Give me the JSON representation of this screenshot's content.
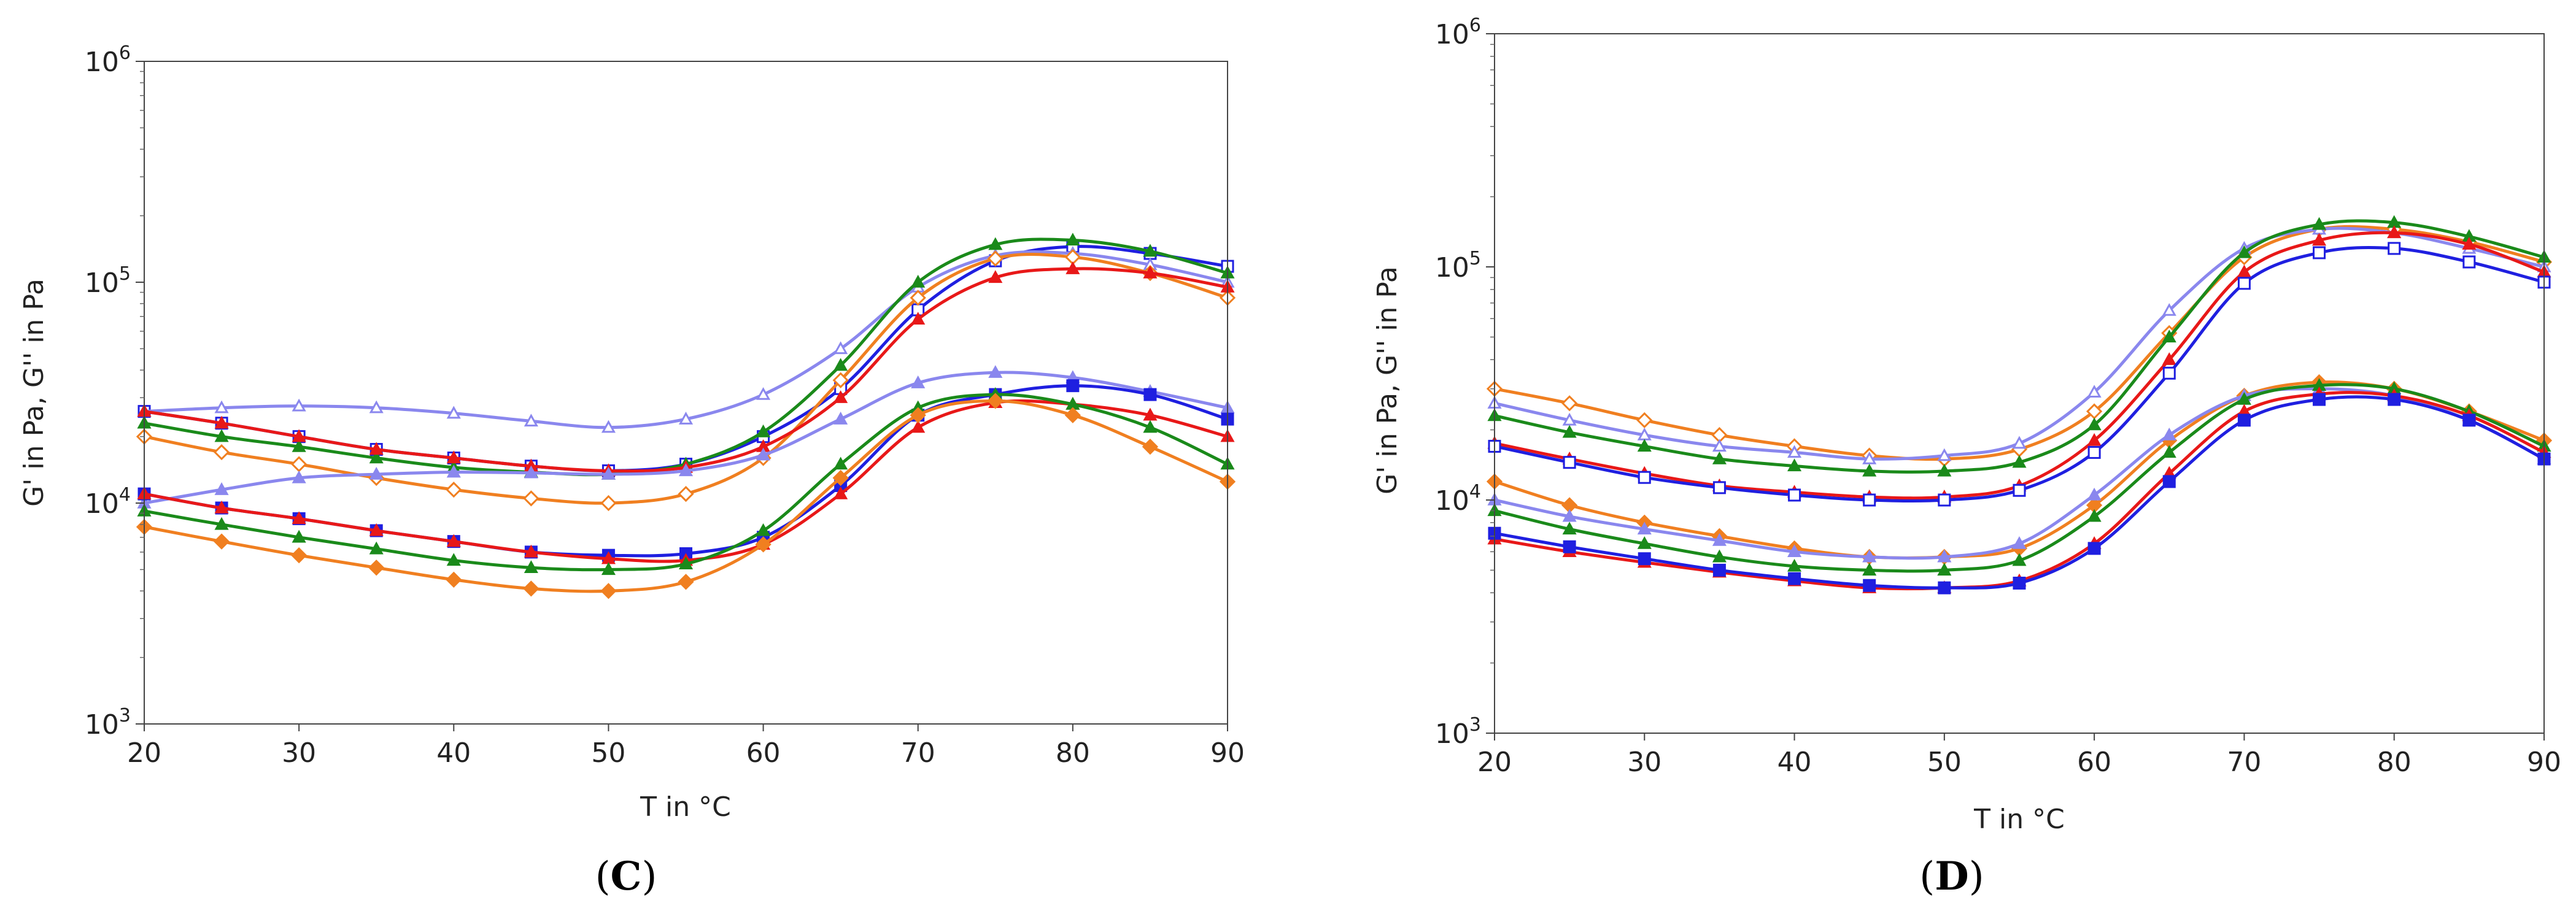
{
  "chart_data": [
    {
      "type": "line",
      "panel_label": {
        "open": "(",
        "letter": "C",
        "close": ")"
      },
      "xlabel": "T in °C",
      "ylabel": "G' in Pa, G'' in Pa",
      "xlim": [
        20,
        90
      ],
      "ylim": [
        1000,
        1000000
      ],
      "yscale": "log",
      "x_ticks": [
        "20",
        "30",
        "40",
        "50",
        "60",
        "70",
        "80",
        "90"
      ],
      "y_ticks": [
        {
          "base": "10",
          "exp": "3"
        },
        {
          "base": "10",
          "exp": "4"
        },
        {
          "base": "10",
          "exp": "5"
        },
        {
          "base": "10",
          "exp": "6"
        }
      ],
      "x": [
        20,
        25,
        30,
        35,
        40,
        45,
        50,
        55,
        60,
        65,
        70,
        75,
        80,
        85,
        90
      ],
      "series": [
        {
          "name": "blue G'",
          "color": "#1f1fe0",
          "marker": "square-open",
          "values": [
            26000,
            23000,
            20000,
            17500,
            16000,
            14700,
            14000,
            15000,
            20000,
            33000,
            75000,
            125000,
            145000,
            135000,
            118000
          ]
        },
        {
          "name": "lavender G'",
          "color": "#8a87ee",
          "marker": "triangle-open",
          "values": [
            26000,
            27000,
            27500,
            27000,
            25500,
            23500,
            22000,
            24000,
            31000,
            50000,
            95000,
            132000,
            135000,
            120000,
            100000
          ]
        },
        {
          "name": "green G'",
          "color": "#1a8a1a",
          "marker": "triangle-filled",
          "values": [
            23000,
            20000,
            18000,
            16000,
            14500,
            13800,
            13500,
            15000,
            21000,
            42000,
            100000,
            148000,
            155000,
            138000,
            110000
          ]
        },
        {
          "name": "orange G'",
          "color": "#f07f20",
          "marker": "diamond-open",
          "values": [
            20000,
            17000,
            15000,
            13000,
            11500,
            10500,
            10000,
            11000,
            16000,
            36000,
            85000,
            128000,
            130000,
            110000,
            85000
          ]
        },
        {
          "name": "red G'",
          "color": "#e81818",
          "marker": "triangle-filled",
          "values": [
            26000,
            23000,
            20000,
            17500,
            16000,
            14700,
            14000,
            14500,
            18000,
            30000,
            68000,
            105000,
            115000,
            110000,
            95000
          ]
        },
        {
          "name": "lavender G''",
          "color": "#8a87ee",
          "marker": "triangle-filled",
          "values": [
            10000,
            11500,
            13000,
            13500,
            13800,
            13700,
            13500,
            14000,
            16500,
            24000,
            35000,
            39000,
            37000,
            32000,
            27000
          ]
        },
        {
          "name": "blue G''",
          "color": "#1f1fe0",
          "marker": "square-filled",
          "values": [
            11000,
            9500,
            8500,
            7500,
            6700,
            6000,
            5800,
            5900,
            7000,
            12000,
            25000,
            31000,
            34000,
            31000,
            24000
          ]
        },
        {
          "name": "red G''",
          "color": "#e81818",
          "marker": "triangle-filled",
          "values": [
            11000,
            9500,
            8500,
            7500,
            6700,
            6000,
            5600,
            5500,
            6500,
            11000,
            22000,
            28500,
            28000,
            25000,
            20000
          ]
        },
        {
          "name": "green G''",
          "color": "#1a8a1a",
          "marker": "triangle-filled",
          "values": [
            9200,
            8000,
            7000,
            6200,
            5500,
            5100,
            5000,
            5300,
            7500,
            15000,
            27000,
            31000,
            28000,
            22000,
            15000
          ]
        },
        {
          "name": "orange G''",
          "color": "#f07f20",
          "marker": "diamond-filled",
          "values": [
            7800,
            6700,
            5800,
            5100,
            4500,
            4100,
            4000,
            4400,
            6500,
            13000,
            25000,
            29000,
            25000,
            18000,
            12500
          ]
        }
      ]
    },
    {
      "type": "line",
      "panel_label": {
        "open": "(",
        "letter": "D",
        "close": ")"
      },
      "xlabel": "T in °C",
      "ylabel": "G' in Pa, G'' in Pa",
      "xlim": [
        20,
        90
      ],
      "ylim": [
        1000,
        1000000
      ],
      "yscale": "log",
      "x_ticks": [
        "20",
        "30",
        "40",
        "50",
        "60",
        "70",
        "80",
        "90"
      ],
      "y_ticks": [
        {
          "base": "10",
          "exp": "3"
        },
        {
          "base": "10",
          "exp": "4"
        },
        {
          "base": "10",
          "exp": "5"
        },
        {
          "base": "10",
          "exp": "6"
        }
      ],
      "x": [
        20,
        25,
        30,
        35,
        40,
        45,
        50,
        55,
        60,
        65,
        70,
        75,
        80,
        85,
        90
      ],
      "series": [
        {
          "name": "orange G'",
          "color": "#f07f20",
          "marker": "diamond-open",
          "values": [
            30000,
            26000,
            22000,
            19000,
            17000,
            15500,
            15000,
            16500,
            24000,
            52000,
            110000,
            145000,
            145000,
            128000,
            105000
          ]
        },
        {
          "name": "lavender G'",
          "color": "#8a87ee",
          "marker": "triangle-open",
          "values": [
            26000,
            22000,
            19000,
            17000,
            16000,
            15000,
            15500,
            17500,
            29000,
            65000,
            120000,
            145000,
            140000,
            120000,
            100000
          ]
        },
        {
          "name": "green G'",
          "color": "#1a8a1a",
          "marker": "triangle-filled",
          "values": [
            23000,
            19500,
            17000,
            15000,
            14000,
            13300,
            13300,
            14500,
            21000,
            50000,
            115000,
            152000,
            155000,
            135000,
            110000
          ]
        },
        {
          "name": "red G'",
          "color": "#e81818",
          "marker": "triangle-filled",
          "values": [
            17500,
            15000,
            13000,
            11500,
            10800,
            10300,
            10300,
            11500,
            18000,
            40000,
            95000,
            130000,
            140000,
            125000,
            95000
          ]
        },
        {
          "name": "blue G'",
          "color": "#1f1fe0",
          "marker": "square-open",
          "values": [
            17000,
            14500,
            12500,
            11300,
            10500,
            10000,
            10000,
            11000,
            16000,
            35000,
            85000,
            115000,
            120000,
            105000,
            86000
          ]
        },
        {
          "name": "orange G''",
          "color": "#f07f20",
          "marker": "diamond-filled",
          "values": [
            12000,
            9500,
            8000,
            7000,
            6200,
            5700,
            5700,
            6200,
            9500,
            18000,
            28000,
            32000,
            30000,
            24000,
            18000
          ]
        },
        {
          "name": "lavender G''",
          "color": "#8a87ee",
          "marker": "triangle-filled",
          "values": [
            10000,
            8500,
            7500,
            6700,
            6000,
            5700,
            5700,
            6500,
            10500,
            19000,
            28000,
            30000,
            28000,
            22000,
            15000
          ]
        },
        {
          "name": "green G''",
          "color": "#1a8a1a",
          "marker": "triangle-filled",
          "values": [
            9000,
            7500,
            6500,
            5700,
            5200,
            5000,
            5000,
            5500,
            8500,
            16000,
            27000,
            31000,
            30000,
            24000,
            17000
          ]
        },
        {
          "name": "red G''",
          "color": "#e81818",
          "marker": "triangle-filled",
          "values": [
            6800,
            6000,
            5400,
            4900,
            4500,
            4200,
            4200,
            4500,
            6500,
            13000,
            24000,
            28500,
            28000,
            23000,
            16000
          ]
        },
        {
          "name": "blue G''",
          "color": "#1f1fe0",
          "marker": "square-filled",
          "values": [
            7200,
            6300,
            5600,
            5000,
            4600,
            4300,
            4200,
            4400,
            6200,
            12000,
            22000,
            27000,
            27000,
            22000,
            15000
          ]
        }
      ]
    }
  ]
}
